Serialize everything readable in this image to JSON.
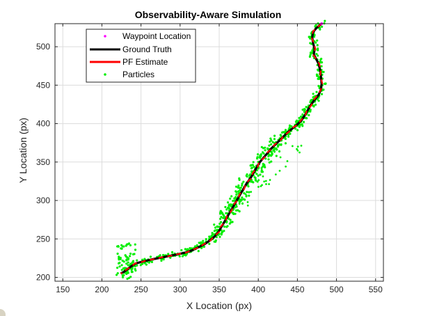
{
  "chart_data": {
    "type": "line",
    "title": "Observability-Aware Simulation",
    "xlabel": "X Location (px)",
    "ylabel": "Y Location (px)",
    "xlim": [
      140,
      560
    ],
    "ylim": [
      195,
      530
    ],
    "xticks": [
      150,
      200,
      250,
      300,
      350,
      400,
      450,
      500,
      550
    ],
    "yticks": [
      200,
      250,
      300,
      350,
      400,
      450,
      500
    ],
    "grid": true,
    "legend_position": "top-left",
    "colors": {
      "waypoint": "#ff00ff",
      "ground_truth": "#000000",
      "pf_estimate": "#ff0000",
      "particles": "#00ee00",
      "axis": "#262626",
      "grid": "#dcdcdc"
    },
    "series": [
      {
        "name": "Waypoint Location",
        "marker": "dot",
        "points": [
          [
            481,
            530
          ]
        ]
      },
      {
        "name": "Ground Truth",
        "style": "line",
        "points": [
          [
            481,
            530
          ],
          [
            474,
            524
          ],
          [
            470,
            519
          ],
          [
            469,
            512
          ],
          [
            470,
            505
          ],
          [
            472,
            497
          ],
          [
            471,
            490
          ],
          [
            474,
            484
          ],
          [
            477,
            478
          ],
          [
            479,
            470
          ],
          [
            480,
            462
          ],
          [
            481,
            452
          ],
          [
            480,
            444
          ],
          [
            477,
            437
          ],
          [
            472,
            431
          ],
          [
            467,
            424
          ],
          [
            463,
            417
          ],
          [
            459,
            410
          ],
          [
            455,
            404
          ],
          [
            450,
            399
          ],
          [
            444,
            394
          ],
          [
            438,
            389
          ],
          [
            433,
            384
          ],
          [
            428,
            379
          ],
          [
            422,
            373
          ],
          [
            417,
            368
          ],
          [
            412,
            362
          ],
          [
            407,
            356
          ],
          [
            402,
            350
          ],
          [
            398,
            343
          ],
          [
            394,
            336
          ],
          [
            390,
            329
          ],
          [
            385,
            322
          ],
          [
            381,
            315
          ],
          [
            377,
            308
          ],
          [
            373,
            301
          ],
          [
            369,
            294
          ],
          [
            365,
            287
          ],
          [
            361,
            280
          ],
          [
            357,
            273
          ],
          [
            353,
            266
          ],
          [
            349,
            259
          ],
          [
            344,
            253
          ],
          [
            338,
            248
          ],
          [
            331,
            243
          ],
          [
            323,
            239
          ],
          [
            315,
            235
          ],
          [
            306,
            232
          ],
          [
            297,
            230
          ],
          [
            287,
            228
          ],
          [
            277,
            226
          ],
          [
            267,
            224
          ],
          [
            258,
            222
          ],
          [
            250,
            220
          ],
          [
            243,
            218
          ],
          [
            237,
            214
          ],
          [
            232,
            210
          ],
          [
            228,
            207
          ],
          [
            224,
            205
          ]
        ]
      },
      {
        "name": "PF Estimate",
        "style": "line",
        "points": [
          [
            481,
            530
          ],
          [
            475,
            525
          ],
          [
            470,
            520
          ],
          [
            468,
            512
          ],
          [
            471,
            505
          ],
          [
            473,
            497
          ],
          [
            470,
            490
          ],
          [
            474,
            484
          ],
          [
            478,
            478
          ],
          [
            480,
            470
          ],
          [
            479,
            462
          ],
          [
            482,
            452
          ],
          [
            480,
            444
          ],
          [
            476,
            437
          ],
          [
            471,
            431
          ],
          [
            468,
            424
          ],
          [
            462,
            417
          ],
          [
            460,
            410
          ],
          [
            454,
            404
          ],
          [
            451,
            399
          ],
          [
            443,
            394
          ],
          [
            439,
            389
          ],
          [
            432,
            384
          ],
          [
            429,
            379
          ],
          [
            421,
            373
          ],
          [
            418,
            368
          ],
          [
            411,
            362
          ],
          [
            408,
            356
          ],
          [
            401,
            350
          ],
          [
            399,
            343
          ],
          [
            393,
            336
          ],
          [
            391,
            329
          ],
          [
            384,
            322
          ],
          [
            382,
            315
          ],
          [
            376,
            308
          ],
          [
            374,
            301
          ],
          [
            368,
            294
          ],
          [
            366,
            287
          ],
          [
            360,
            280
          ],
          [
            358,
            273
          ],
          [
            352,
            266
          ],
          [
            350,
            259
          ],
          [
            343,
            253
          ],
          [
            339,
            248
          ],
          [
            330,
            243
          ],
          [
            324,
            239
          ],
          [
            314,
            235
          ],
          [
            307,
            232
          ],
          [
            296,
            230
          ],
          [
            288,
            228
          ],
          [
            276,
            226
          ],
          [
            268,
            224
          ],
          [
            257,
            222
          ],
          [
            251,
            220
          ],
          [
            242,
            218
          ],
          [
            238,
            214
          ],
          [
            231,
            210
          ],
          [
            229,
            207
          ],
          [
            224,
            205
          ]
        ]
      },
      {
        "name": "Particles",
        "marker": "dot",
        "points": []
      }
    ]
  }
}
